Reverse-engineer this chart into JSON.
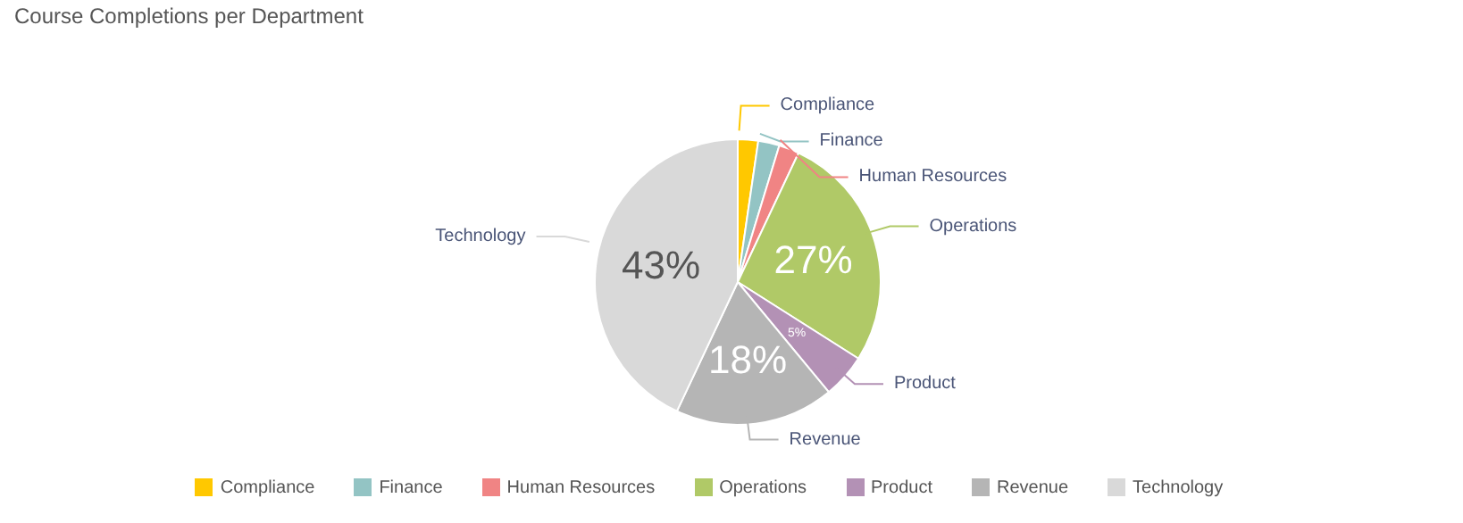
{
  "chart_data": {
    "type": "pie",
    "title": "Course Completions per Department",
    "categories": [
      "Compliance",
      "Finance",
      "Human Resources",
      "Operations",
      "Product",
      "Revenue",
      "Technology"
    ],
    "values": [
      2.3,
      2.4,
      2.3,
      27,
      5,
      18,
      43
    ],
    "value_labels": [
      null,
      null,
      null,
      "27%",
      "5%",
      "18%",
      "43%"
    ],
    "colors": [
      "#ffc800",
      "#93c4c4",
      "#f08484",
      "#b0c967",
      "#b391b5",
      "#b5b5b5",
      "#d9d9d9"
    ],
    "legend": "bottom"
  }
}
